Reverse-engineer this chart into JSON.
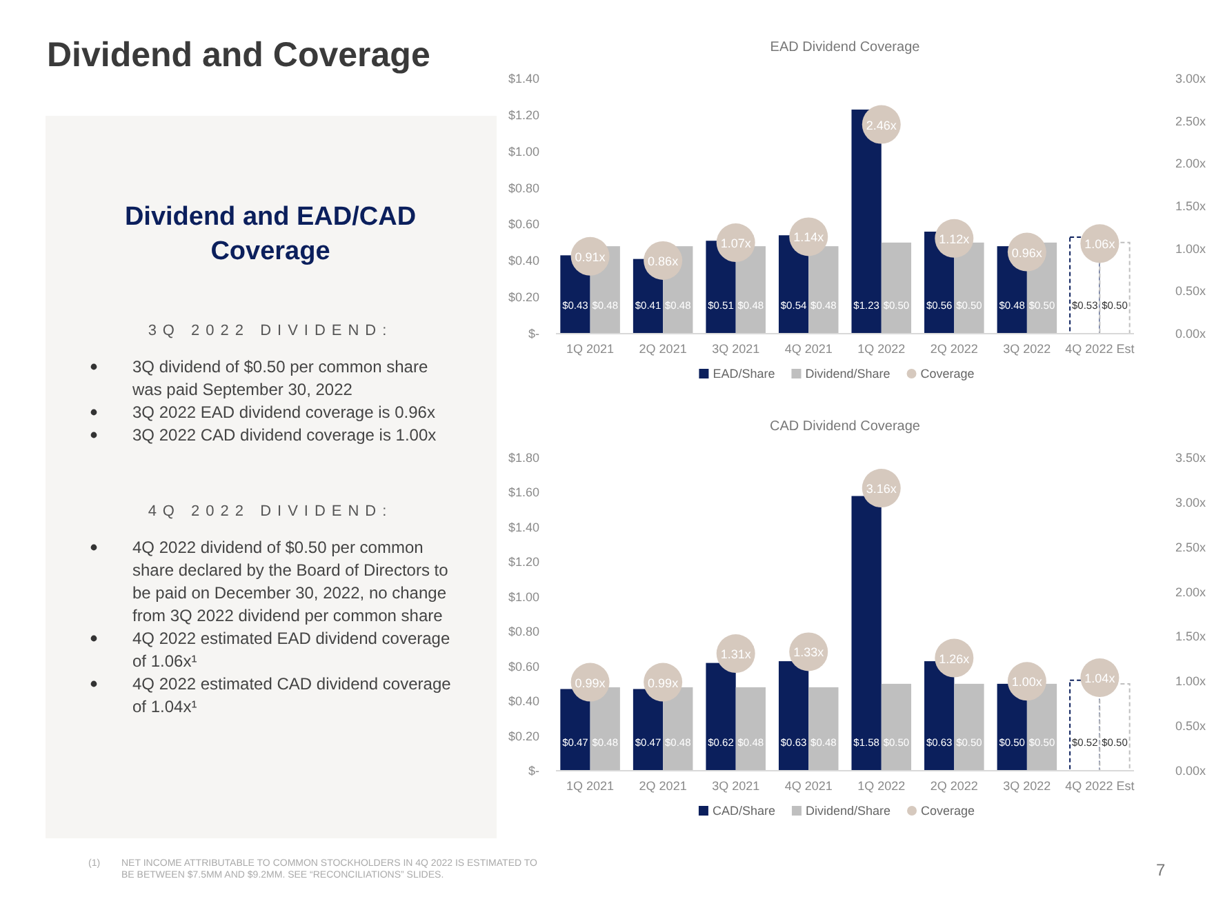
{
  "chart_data": [
    {
      "type": "other",
      "title": "Dividend and Coverage",
      "subtitle": "Dividend and EAD/CAD Coverage",
      "annotations": [
        "3Q 2022 DIVIDEND:",
        "3Q dividend of $0.50 per common share was paid September 30, 2022",
        "3Q 2022 EAD dividend  coverage is 0.96x",
        "3Q 2022 CAD dividend  coverage is 1.00x",
        "4Q 2022 DIVIDEND:",
        "4Q 2022 dividend of $0.50 per common share declared by the Board of Directors to be paid on December 30, 2022, no change from 3Q 2022 dividend  per common share",
        "4Q 2022 estimated EAD dividend  coverage of 1.06x¹",
        "4Q 2022 estimated CAD dividend  coverage of 1.04x¹",
        "(1)",
        "NET INCOME ATTRIBUTABLE TO COMMON STOCKHOLDERS IN 4Q 2022 IS ESTIMATED TO BE BETWEEN $7.5MM AND $9.2MM. SEE “RECONCILIATIONS” SLIDES.",
        "7"
      ]
    },
    {
      "type": "bar",
      "title": "EAD Dividend Coverage",
      "categories": [
        "1Q 2021",
        "2Q 2021",
        "3Q 2021",
        "4Q 2021",
        "1Q 2022",
        "2Q 2022",
        "3Q 2022",
        "4Q 2022 Est"
      ],
      "series": [
        {
          "name": "EAD/Share",
          "color": "#0b1f5c",
          "colors": [
            "#0b1f5c",
            "#0b1f5c",
            "#0b1f5c",
            "#0b1f5c",
            "#0b1f5c",
            "#0b1f5c",
            "#0b1f5c",
            "#ffffff"
          ],
          "values": [
            0.43,
            0.41,
            0.51,
            0.54,
            1.23,
            0.56,
            0.48,
            0.53
          ],
          "value_labels": [
            "$0.43",
            "$0.41",
            "$0.51",
            "$0.54",
            "$1.23",
            "$0.56",
            "$0.48",
            "$0.53"
          ]
        },
        {
          "name": "Dividend/Share",
          "color": "#bfbfbf",
          "colors": [
            "#bfbfbf",
            "#bfbfbf",
            "#bfbfbf",
            "#bfbfbf",
            "#bfbfbf",
            "#bfbfbf",
            "#bfbfbf",
            "#ffffff"
          ],
          "values": [
            0.48,
            0.48,
            0.48,
            0.48,
            0.5,
            0.5,
            0.5,
            0.5
          ],
          "value_labels": [
            "$0.48",
            "$0.48",
            "$0.48",
            "$0.48",
            "$0.50",
            "$0.50",
            "$0.50",
            "$0.50"
          ]
        },
        {
          "name": "Coverage",
          "type": "scatter",
          "axis": "y2",
          "color": "#d6c9be",
          "values": [
            0.91,
            0.86,
            1.07,
            1.14,
            2.46,
            1.12,
            0.96,
            1.06
          ],
          "value_labels": [
            "0.91x",
            "0.86x",
            "1.07x",
            "1.14x",
            "2.46x",
            "1.12x",
            "0.96x",
            "1.06x"
          ]
        }
      ],
      "ylim": [
        0,
        1.4
      ],
      "yticks": [
        {
          "value": 0,
          "label": "$-"
        },
        {
          "value": 0.2,
          "label": "$0.20"
        },
        {
          "value": 0.4,
          "label": "$0.40"
        },
        {
          "value": 0.6,
          "label": "$0.60"
        },
        {
          "value": 0.8,
          "label": "$0.80"
        },
        {
          "value": 1.0,
          "label": "$1.00"
        },
        {
          "value": 1.2,
          "label": "$1.20"
        },
        {
          "value": 1.4,
          "label": "$1.40"
        }
      ],
      "y2lim": [
        0,
        3
      ],
      "y2ticks": [
        {
          "value": 0,
          "label": "0.00x"
        },
        {
          "value": 0.5,
          "label": "0.50x"
        },
        {
          "value": 1,
          "label": "1.00x"
        },
        {
          "value": 1.5,
          "label": "1.50x"
        },
        {
          "value": 2,
          "label": "2.00x"
        },
        {
          "value": 2.5,
          "label": "2.50x"
        },
        {
          "value": 3,
          "label": "3.00x"
        }
      ],
      "legend": "bottom",
      "marker": "circle"
    },
    {
      "type": "bar",
      "title": "CAD Dividend Coverage",
      "categories": [
        "1Q 2021",
        "2Q 2021",
        "3Q 2021",
        "4Q 2021",
        "1Q 2022",
        "2Q 2022",
        "3Q 2022",
        "4Q 2022 Est"
      ],
      "series": [
        {
          "name": "CAD/Share",
          "color": "#0b1f5c",
          "colors": [
            "#0b1f5c",
            "#0b1f5c",
            "#0b1f5c",
            "#0b1f5c",
            "#0b1f5c",
            "#0b1f5c",
            "#0b1f5c",
            "#ffffff"
          ],
          "values": [
            0.47,
            0.47,
            0.62,
            0.63,
            1.58,
            0.63,
            0.5,
            0.52
          ],
          "value_labels": [
            "$0.47",
            "$0.47",
            "$0.62",
            "$0.63",
            "$1.58",
            "$0.63",
            "$0.50",
            "$0.52"
          ]
        },
        {
          "name": "Dividend/Share",
          "color": "#bfbfbf",
          "colors": [
            "#bfbfbf",
            "#bfbfbf",
            "#bfbfbf",
            "#bfbfbf",
            "#bfbfbf",
            "#bfbfbf",
            "#bfbfbf",
            "#ffffff"
          ],
          "values": [
            0.48,
            0.48,
            0.48,
            0.48,
            0.5,
            0.5,
            0.5,
            0.5
          ],
          "value_labels": [
            "$0.48",
            "$0.48",
            "$0.48",
            "$0.48",
            "$0.50",
            "$0.50",
            "$0.50",
            "$0.50"
          ]
        },
        {
          "name": "Coverage",
          "type": "scatter",
          "axis": "y2",
          "color": "#d6c9be",
          "values": [
            0.99,
            0.99,
            1.31,
            1.33,
            3.16,
            1.26,
            1.0,
            1.04
          ],
          "value_labels": [
            "0.99x",
            "0.99x",
            "1.31x",
            "1.33x",
            "3.16x",
            "1.26x",
            "1.00x",
            "1.04x"
          ]
        }
      ],
      "ylim": [
        0,
        1.8
      ],
      "yticks": [
        {
          "value": 0,
          "label": "$-"
        },
        {
          "value": 0.2,
          "label": "$0.20"
        },
        {
          "value": 0.4,
          "label": "$0.40"
        },
        {
          "value": 0.6,
          "label": "$0.60"
        },
        {
          "value": 0.8,
          "label": "$0.80"
        },
        {
          "value": 1.0,
          "label": "$1.00"
        },
        {
          "value": 1.2,
          "label": "$1.20"
        },
        {
          "value": 1.4,
          "label": "$1.40"
        },
        {
          "value": 1.6,
          "label": "$1.60"
        },
        {
          "value": 1.8,
          "label": "$1.80"
        }
      ],
      "y2lim": [
        0,
        3.5
      ],
      "y2ticks": [
        {
          "value": 0,
          "label": "0.00x"
        },
        {
          "value": 0.5,
          "label": "0.50x"
        },
        {
          "value": 1,
          "label": "1.00x"
        },
        {
          "value": 1.5,
          "label": "1.50x"
        },
        {
          "value": 2,
          "label": "2.00x"
        },
        {
          "value": 2.5,
          "label": "2.50x"
        },
        {
          "value": 3,
          "label": "3.00x"
        },
        {
          "value": 3.5,
          "label": "3.50x"
        }
      ],
      "legend": "bottom",
      "marker": "circle"
    }
  ]
}
